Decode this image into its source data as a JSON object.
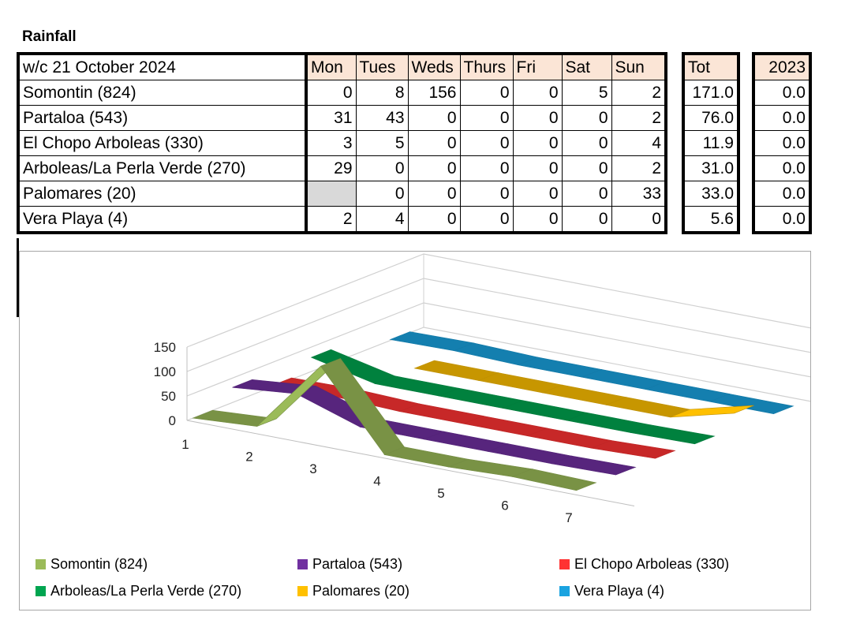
{
  "title": "Rainfall",
  "table": {
    "week_label": "w/c 21 October 2024",
    "days": [
      "Mon",
      "Tues",
      "Weds",
      "Thurs",
      "Fri",
      "Sat",
      "Sun"
    ],
    "tot_header": "Tot",
    "year_header": "2023",
    "rows": [
      {
        "name": "Somontin (824)",
        "values": [
          "0",
          "8",
          "156",
          "0",
          "0",
          "5",
          "2"
        ],
        "tot": "171.0",
        "year": "0.0"
      },
      {
        "name": "Partaloa (543)",
        "values": [
          "31",
          "43",
          "0",
          "0",
          "0",
          "0",
          "2"
        ],
        "tot": "76.0",
        "year": "0.0"
      },
      {
        "name": "El Chopo Arboleas (330)",
        "values": [
          "3",
          "5",
          "0",
          "0",
          "0",
          "0",
          "4"
        ],
        "tot": "11.9",
        "year": "0.0"
      },
      {
        "name": "Arboleas/La Perla Verde (270)",
        "values": [
          "29",
          "0",
          "0",
          "0",
          "0",
          "0",
          "2"
        ],
        "tot": "31.0",
        "year": "0.0"
      },
      {
        "name": "Palomares (20)",
        "values": [
          "",
          "0",
          "0",
          "0",
          "0",
          "0",
          "33"
        ],
        "tot": "33.0",
        "year": "0.0"
      },
      {
        "name": "Vera Playa (4)",
        "values": [
          "2",
          "4",
          "0",
          "0",
          "0",
          "0",
          "0"
        ],
        "tot": "5.6",
        "year": "0.0"
      }
    ]
  },
  "chart_data": {
    "type": "line",
    "style": "3d-ribbon",
    "categories": [
      "1",
      "2",
      "3",
      "4",
      "5",
      "6",
      "7"
    ],
    "y_ticks": [
      "0",
      "50",
      "100",
      "150"
    ],
    "ylim": [
      0,
      150
    ],
    "legend_position": "bottom",
    "series": [
      {
        "name": "Somontin (824)",
        "color": "#9bbb59",
        "values": [
          0,
          8,
          156,
          0,
          0,
          5,
          2
        ]
      },
      {
        "name": "Partaloa (543)",
        "color": "#7030a0",
        "values": [
          31,
          43,
          0,
          0,
          0,
          0,
          2
        ]
      },
      {
        "name": "El Chopo Arboleas (330)",
        "color": "#ff3333",
        "values": [
          3,
          5,
          0,
          0,
          0,
          0,
          4
        ]
      },
      {
        "name": "Arboleas/La Perla Verde (270)",
        "color": "#00a550",
        "values": [
          29,
          0,
          0,
          0,
          0,
          0,
          2
        ]
      },
      {
        "name": "Palomares (20)",
        "color": "#ffc000",
        "values": [
          null,
          0,
          0,
          0,
          0,
          0,
          33
        ]
      },
      {
        "name": "Vera Playa (4)",
        "color": "#1aa3e0",
        "values": [
          2,
          4,
          0,
          0,
          0,
          0,
          0
        ]
      }
    ]
  }
}
